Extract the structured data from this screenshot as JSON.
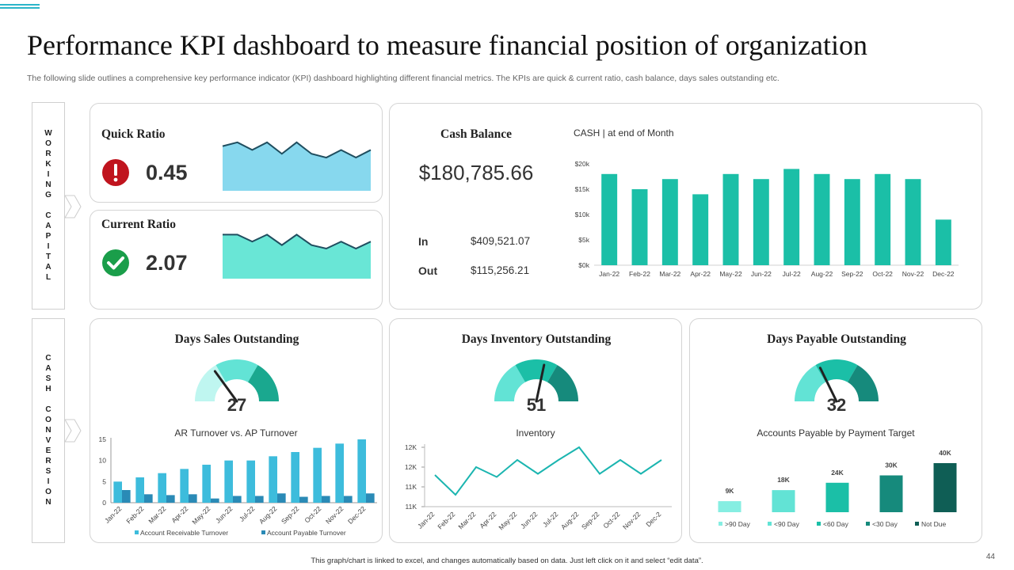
{
  "header": {
    "title": "Performance KPI dashboard to measure financial position of organization",
    "subtitle": "The following slide outlines a comprehensive key performance indicator (KPI) dashboard highlighting different financial metrics. The KPIs are quick & current ratio, cash balance, days sales outstanding etc."
  },
  "sections": {
    "working_capital": "WORKING CAPITAL",
    "cash_conversion": "CASH CONVERSION"
  },
  "quick_ratio": {
    "label": "Quick Ratio",
    "value": "0.45",
    "status_icon": "alert-icon",
    "color": "#87d8ee"
  },
  "current_ratio": {
    "label": "Current Ratio",
    "value": "2.07",
    "status_icon": "check-icon",
    "color": "#69e6d6"
  },
  "cash_balance": {
    "label": "Cash Balance",
    "value": "$180,785.66",
    "in_label": "In",
    "in_value": "$409,521.07",
    "out_label": "Out",
    "out_value": "$115,256.21"
  },
  "dso": {
    "label": "Days Sales Outstanding",
    "value": "27",
    "gauge_value": 27
  },
  "dio": {
    "label": "Days Inventory Outstanding",
    "value": "51",
    "gauge_value": 51
  },
  "dpo": {
    "label": "Days Payable Outstanding",
    "value": "32",
    "gauge_value": 32
  },
  "footer": {
    "note": "This graph/chart is linked to excel, and changes automatically based on data. Just left click on it and select “edit data”.",
    "page": "44"
  },
  "colors": {
    "teal": "#1bbfa7",
    "dark_teal": "#168a7c",
    "line": "#1bb5b0",
    "bar_ar": "#3dbcdc",
    "bar_ap": "#2a8ab6"
  },
  "chart_data": [
    {
      "id": "quick-ratio-spark",
      "type": "area",
      "values": [
        6,
        7,
        5,
        7,
        4,
        7,
        4,
        3,
        5,
        3,
        5
      ]
    },
    {
      "id": "current-ratio-spark",
      "type": "area",
      "values": [
        7,
        7,
        5,
        7,
        4,
        7,
        4,
        3,
        5,
        3,
        5
      ]
    },
    {
      "id": "cash-chart",
      "type": "bar",
      "title": "CASH | at end of Month",
      "categories": [
        "Jan-22",
        "Feb-22",
        "Mar-22",
        "Apr-22",
        "May-22",
        "Jun-22",
        "Jul-22",
        "Aug-22",
        "Sep-22",
        "Oct-22",
        "Nov-22",
        "Dec-22"
      ],
      "values": [
        18000,
        15000,
        17000,
        14000,
        18000,
        17000,
        19000,
        18000,
        17000,
        18000,
        17000,
        9000
      ],
      "ylim": [
        0,
        20000
      ],
      "yticks": [
        0,
        5000,
        10000,
        15000,
        20000
      ],
      "ytick_labels": [
        "$0k",
        "$5k",
        "$10k",
        "$15k",
        "$20k"
      ]
    },
    {
      "id": "ar-ap-chart",
      "type": "bar",
      "title": "AR Turnover vs. AP Turnover",
      "categories": [
        "Jan-22",
        "Feb-22",
        "Mar-22",
        "Apr-22",
        "May-22",
        "Jun-22",
        "Jul-22",
        "Aug-22",
        "Sep-22",
        "Oct-22",
        "Nov-22",
        "Dec-22"
      ],
      "series": [
        {
          "name": "Account Receivable Turnover",
          "values": [
            5,
            6,
            7,
            8,
            9,
            10,
            10,
            11,
            12,
            13,
            14,
            15
          ]
        },
        {
          "name": "Account Payable Turnover",
          "values": [
            3,
            2,
            1.8,
            2,
            1,
            1.6,
            1.6,
            2.2,
            1.4,
            1.6,
            1.6,
            2.2
          ]
        }
      ],
      "ylim": [
        0,
        15
      ],
      "yticks": [
        0,
        5,
        10,
        15
      ],
      "ytick_labels": [
        "0",
        "5",
        "10",
        "15"
      ]
    },
    {
      "id": "inventory-chart",
      "type": "line",
      "title": "Inventory",
      "categories": [
        "Jan-22",
        "Feb-22",
        "Mar-22",
        "Apr-22",
        "May-22",
        "Jun-22",
        "Jul-22",
        "Aug-22",
        "Sep-22",
        "Oct-22",
        "Nov-22",
        "Dec-2"
      ],
      "values": [
        11800,
        11300,
        12000,
        11750,
        12180,
        11830,
        12180,
        12500,
        11830,
        12180,
        11830,
        12180
      ],
      "ylim": [
        11000,
        12600
      ],
      "yticks": [
        11000,
        11500,
        12000,
        12500
      ],
      "ytick_labels": [
        "11K",
        "11K",
        "12K",
        "12K"
      ]
    },
    {
      "id": "ap-target-chart",
      "type": "bar",
      "title": "Accounts Payable by Payment Target",
      "categories": [
        ">90 Day",
        "<90 Day",
        "<60 Day",
        "<30 Day",
        "Not Due"
      ],
      "values": [
        9,
        18,
        24,
        30,
        40
      ],
      "data_labels": [
        "9K",
        "18K",
        "24K",
        "30K",
        "40K"
      ],
      "colors": [
        "#86eee2",
        "#62e3d5",
        "#1bbfa7",
        "#168a7c",
        "#0f5e55"
      ],
      "ylim": [
        0,
        40
      ]
    }
  ]
}
